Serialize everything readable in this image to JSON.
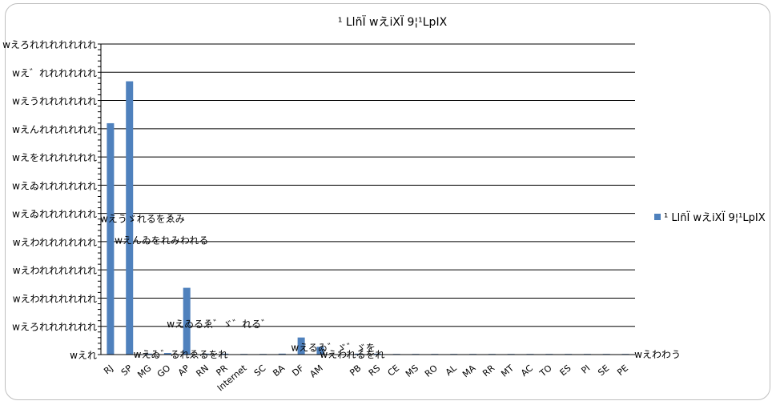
{
  "chart_data": {
    "type": "bar",
    "title": "¹ LlñÏ wえiXÏ 9¦¹LpIX",
    "xlabel": "",
    "ylabel": "",
    "ylim": [
      0,
      100
    ],
    "grid": true,
    "legend_position": "right",
    "y_tick_labels": [
      "wえれ",
      "wえろれれれれれれ",
      "wえわれれれれれれ",
      "wえわれれれれれれ",
      "wえわれれれれれれ",
      "wえゐれれれれれれ",
      "wえゐれれれれれれ",
      "wえをれれれれれれ",
      "wえんれれれれれれ",
      "wえうれれれれれれ",
      "wえ゛れれれれれれ",
      "wえろれれれれれれれ"
    ],
    "categories": [
      "RJ",
      "SP",
      "MG",
      "GO",
      "AP",
      "RN",
      "PR",
      "Internet",
      "SC",
      "BA",
      "DF",
      "AM",
      "",
      "PB",
      "RS",
      "CE",
      "MS",
      "RO",
      "AL",
      "MA",
      "RR",
      "MT",
      "AC",
      "TO",
      "ES",
      "PI",
      "SE",
      "PE"
    ],
    "series": [
      {
        "name": "¹ LlñÏ wえiXÏ 9¦¹LpIX",
        "values": [
          74.5,
          88,
          0.3,
          0.5,
          21.5,
          0.3,
          0.3,
          0.2,
          0.2,
          0.3,
          5.5,
          2.5,
          0,
          0.3,
          0.3,
          0.2,
          0.2,
          0.2,
          0.2,
          0.2,
          0.2,
          0.2,
          0.2,
          0.2,
          0.2,
          0.2,
          0.2,
          0.2
        ],
        "color": "#4f81bd"
      }
    ],
    "data_labels": [
      {
        "text": "wえうゞれるをゑみ",
        "category": "RJ",
        "value": 44
      },
      {
        "text": "wえんゐをれみわれる",
        "category": "SP",
        "value": 37
      },
      {
        "text": "wえゐるゑ゛ゞ゛れる゛",
        "category": "AP",
        "value": 10
      },
      {
        "text": "wえるゐ゛ゞ゛ゞを",
        "category": "DF",
        "value": 2.5
      },
      {
        "text": "wえゐ゛るれゑるをれ",
        "category": "MG",
        "value": 0.3
      },
      {
        "text": "wえわれるをれ",
        "category": "AM",
        "value": 0.2
      },
      {
        "text": "wえわわう",
        "category": "PE",
        "value": 0.2
      }
    ]
  }
}
